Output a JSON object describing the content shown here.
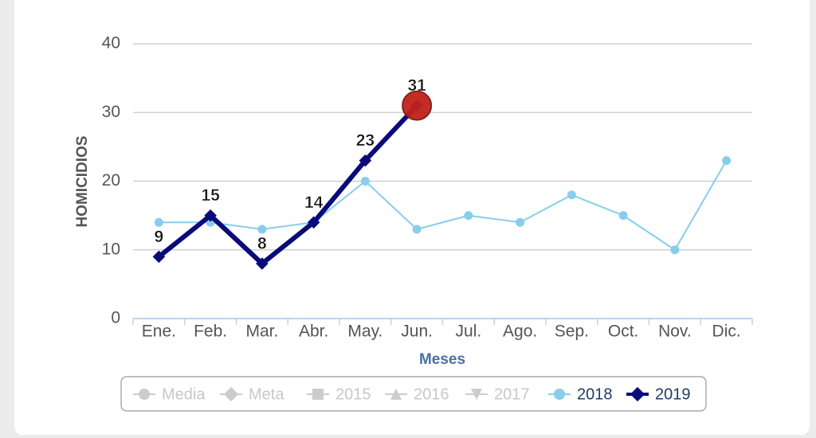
{
  "chart_data": {
    "type": "line",
    "y_label": "HOMICIDIOS",
    "x_label": "Meses",
    "categories": [
      "Ene.",
      "Feb.",
      "Mar.",
      "Abr.",
      "May.",
      "Jun.",
      "Jul.",
      "Ago.",
      "Sep.",
      "Oct.",
      "Nov.",
      "Dic."
    ],
    "ylim": [
      0,
      40
    ],
    "yticks": [
      0,
      10,
      20,
      30,
      40
    ],
    "grid": true,
    "series": [
      {
        "name": "Media",
        "color": "#cccccc",
        "marker": "circle",
        "visible": false,
        "values": [
          null,
          null,
          null,
          null,
          null,
          null,
          null,
          null,
          null,
          null,
          null,
          null
        ]
      },
      {
        "name": "Meta",
        "color": "#cccccc",
        "marker": "diamond",
        "visible": false,
        "values": [
          null,
          null,
          null,
          null,
          null,
          null,
          null,
          null,
          null,
          null,
          null,
          null
        ]
      },
      {
        "name": "2015",
        "color": "#cccccc",
        "marker": "square",
        "visible": false,
        "values": [
          null,
          null,
          null,
          null,
          null,
          null,
          null,
          null,
          null,
          null,
          null,
          null
        ]
      },
      {
        "name": "2016",
        "color": "#cccccc",
        "marker": "triangle",
        "visible": false,
        "values": [
          null,
          null,
          null,
          null,
          null,
          null,
          null,
          null,
          null,
          null,
          null,
          null
        ]
      },
      {
        "name": "2017",
        "color": "#cccccc",
        "marker": "triangle-down",
        "visible": false,
        "values": [
          null,
          null,
          null,
          null,
          null,
          null,
          null,
          null,
          null,
          null,
          null,
          null
        ]
      },
      {
        "name": "2018",
        "color": "#87ceeb",
        "marker": "circle",
        "visible": true,
        "values": [
          14,
          14,
          13,
          14,
          20,
          13,
          15,
          14,
          18,
          15,
          10,
          23
        ]
      },
      {
        "name": "2019",
        "color": "#0a0a7a",
        "marker": "diamond",
        "visible": true,
        "data_labels": true,
        "highlight_last": true,
        "values": [
          9,
          15,
          8,
          14,
          23,
          31,
          null,
          null,
          null,
          null,
          null,
          null
        ]
      }
    ]
  }
}
